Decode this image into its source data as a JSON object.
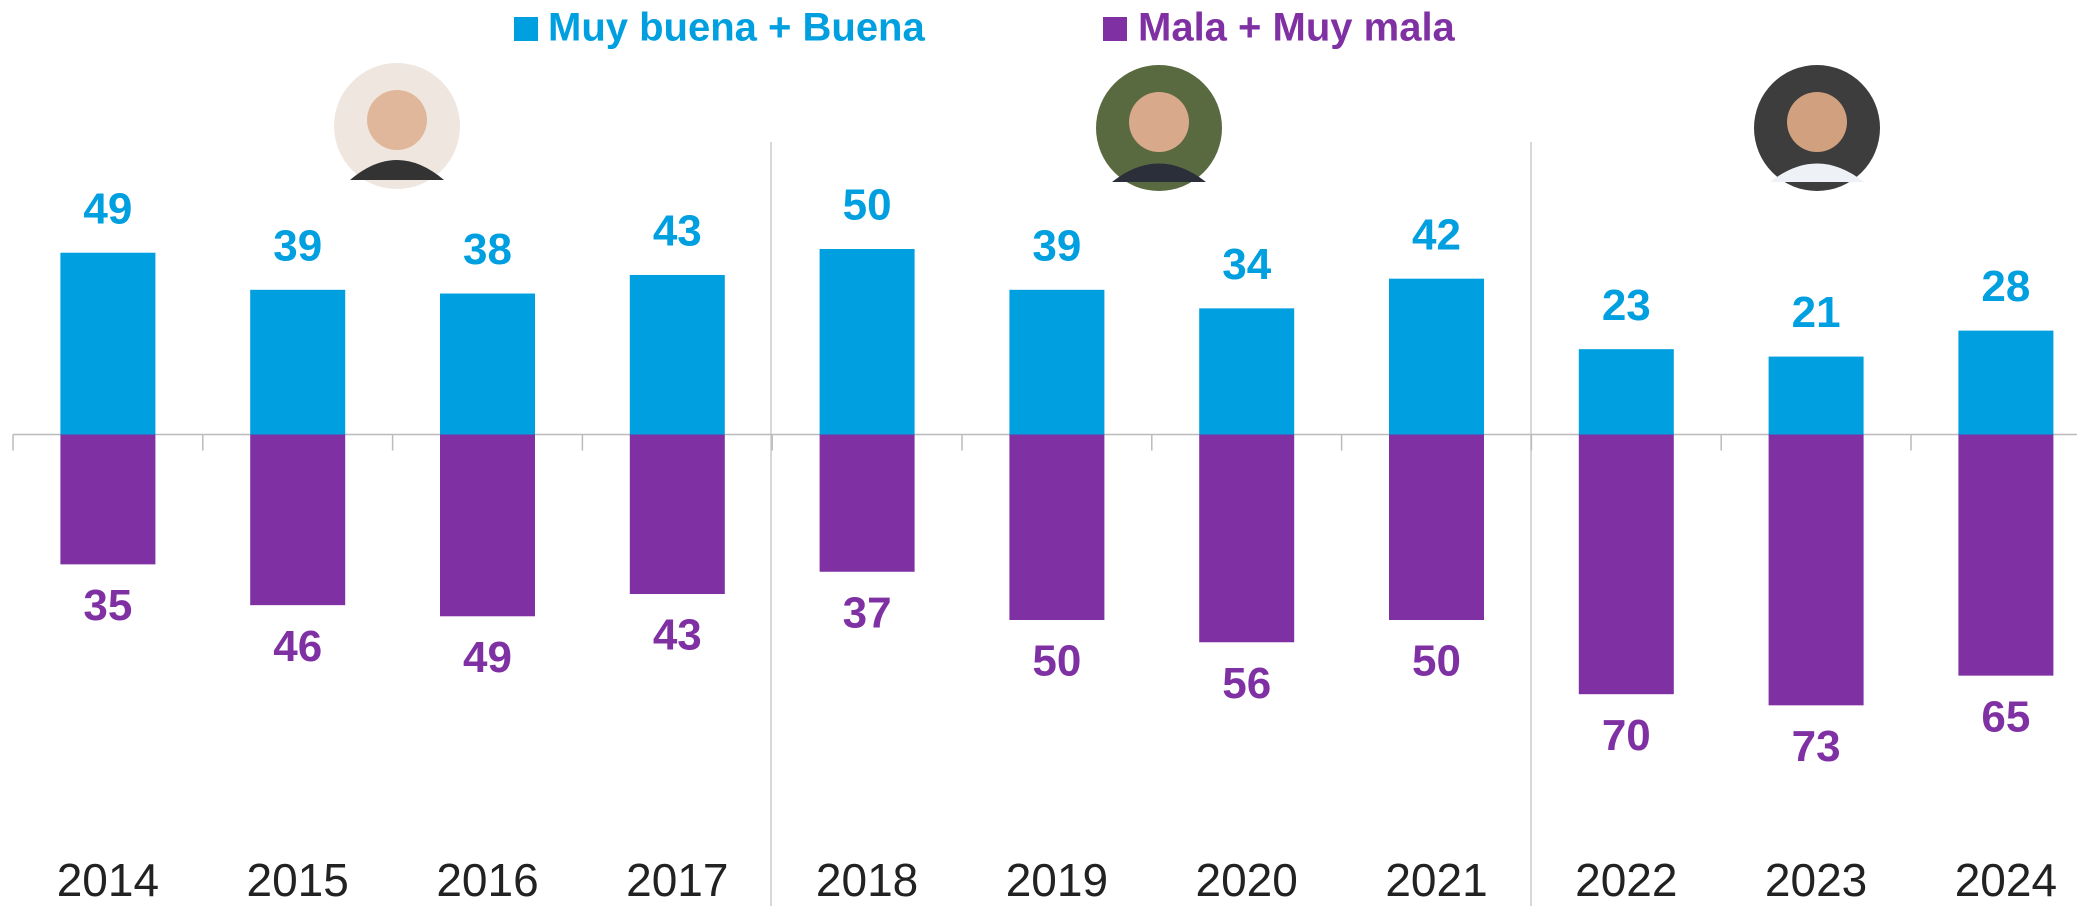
{
  "chart_data": {
    "type": "diverging_bar",
    "categories": [
      "2014",
      "2015",
      "2016",
      "2017",
      "2018",
      "2019",
      "2020",
      "2021",
      "2022",
      "2023",
      "2024"
    ],
    "series": [
      {
        "name": "Muy buena + Buena",
        "color": "#009fe0",
        "values": [
          49,
          39,
          38,
          43,
          50,
          39,
          34,
          42,
          23,
          21,
          28
        ]
      },
      {
        "name": "Mala + Muy mala",
        "color": "#7f31a4",
        "values": [
          35,
          46,
          49,
          43,
          37,
          50,
          56,
          50,
          70,
          73,
          65
        ]
      }
    ]
  }
}
